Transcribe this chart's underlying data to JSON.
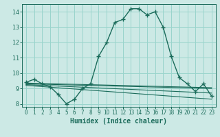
{
  "title": "",
  "xlabel": "Humidex (Indice chaleur)",
  "xlim": [
    -0.5,
    23.5
  ],
  "ylim": [
    7.8,
    14.5
  ],
  "yticks": [
    8,
    9,
    10,
    11,
    12,
    13,
    14
  ],
  "xticks": [
    0,
    1,
    2,
    3,
    4,
    5,
    6,
    7,
    8,
    9,
    10,
    11,
    12,
    13,
    14,
    15,
    16,
    17,
    18,
    19,
    20,
    21,
    22,
    23
  ],
  "bg_color": "#cce9e5",
  "grid_color": "#99d4cc",
  "line_color": "#1a6b5a",
  "main_line": {
    "x": [
      0,
      1,
      2,
      3,
      4,
      5,
      6,
      7,
      8,
      9,
      10,
      11,
      12,
      13,
      14,
      15,
      16,
      17,
      18,
      19,
      20,
      21,
      22,
      23
    ],
    "y": [
      9.4,
      9.6,
      9.3,
      9.1,
      8.6,
      8.0,
      8.3,
      9.0,
      9.3,
      11.1,
      12.0,
      13.3,
      13.5,
      14.2,
      14.2,
      13.8,
      14.0,
      13.0,
      11.1,
      9.7,
      9.3,
      8.8,
      9.3,
      8.5
    ]
  },
  "ref_line1": {
    "x": [
      0,
      23
    ],
    "y": [
      9.35,
      9.05
    ]
  },
  "ref_line2": {
    "x": [
      0,
      23
    ],
    "y": [
      9.3,
      9.0
    ]
  },
  "ref_line3": {
    "x": [
      0,
      23
    ],
    "y": [
      9.25,
      8.7
    ]
  },
  "ref_line4": {
    "x": [
      0,
      23
    ],
    "y": [
      9.2,
      8.3
    ]
  }
}
